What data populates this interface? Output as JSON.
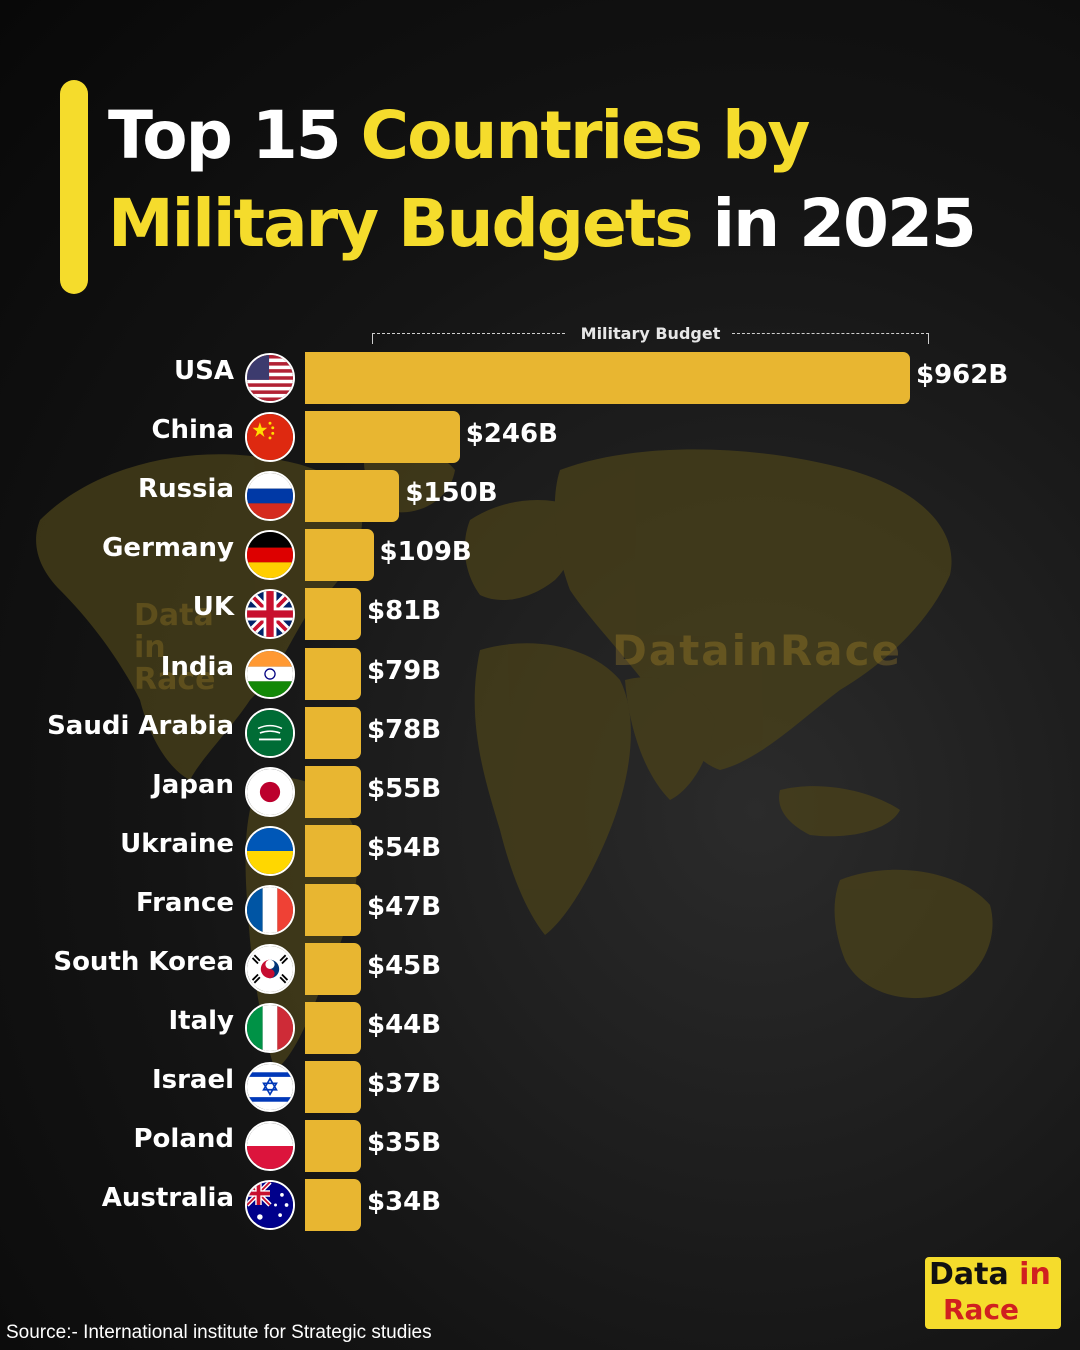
{
  "title": {
    "part1": "Top 15 ",
    "part2": "Countries by",
    "part3": "Military Budgets",
    "part4": " in 2025"
  },
  "legend_label": "Military Budget",
  "watermark": "DatainRace",
  "watermark_small": [
    "Data",
    "in",
    "Race"
  ],
  "source": "Source:- International institute for Strategic studies",
  "logo": {
    "line1a": "Data",
    "line1b": " in",
    "line2": "Race"
  },
  "colors": {
    "bar": "#e8b631",
    "accent": "#f5dc2c",
    "background": "#141414"
  },
  "chart_data": {
    "type": "bar",
    "orientation": "horizontal",
    "title": "Top 15 Countries by Military Budgets in 2025",
    "categories": [
      "USA",
      "China",
      "Russia",
      "Germany",
      "UK",
      "India",
      "Saudi Arabia",
      "Japan",
      "Ukraine",
      "France",
      "South Korea",
      "Italy",
      "Israel",
      "Poland",
      "Australia"
    ],
    "values": [
      962,
      246,
      150,
      109,
      81,
      79,
      78,
      55,
      54,
      47,
      45,
      44,
      37,
      35,
      34
    ],
    "labels": [
      "$962B",
      "$246B",
      "$150B",
      "$109B",
      "$81B",
      "$79B",
      "$78B",
      "$55B",
      "$54B",
      "$47B",
      "$45B",
      "$44B",
      "$37B",
      "$35B",
      "$34B"
    ],
    "flags": [
      "flag-usa-icon",
      "flag-china-icon",
      "flag-russia-icon",
      "flag-germany-icon",
      "flag-uk-icon",
      "flag-india-icon",
      "flag-saudi-arabia-icon",
      "flag-japan-icon",
      "flag-ukraine-icon",
      "flag-france-icon",
      "flag-south-korea-icon",
      "flag-italy-icon",
      "flag-israel-icon",
      "flag-poland-icon",
      "flag-australia-icon"
    ],
    "xlabel": "Military Budget",
    "ylabel": "",
    "grid": false
  }
}
